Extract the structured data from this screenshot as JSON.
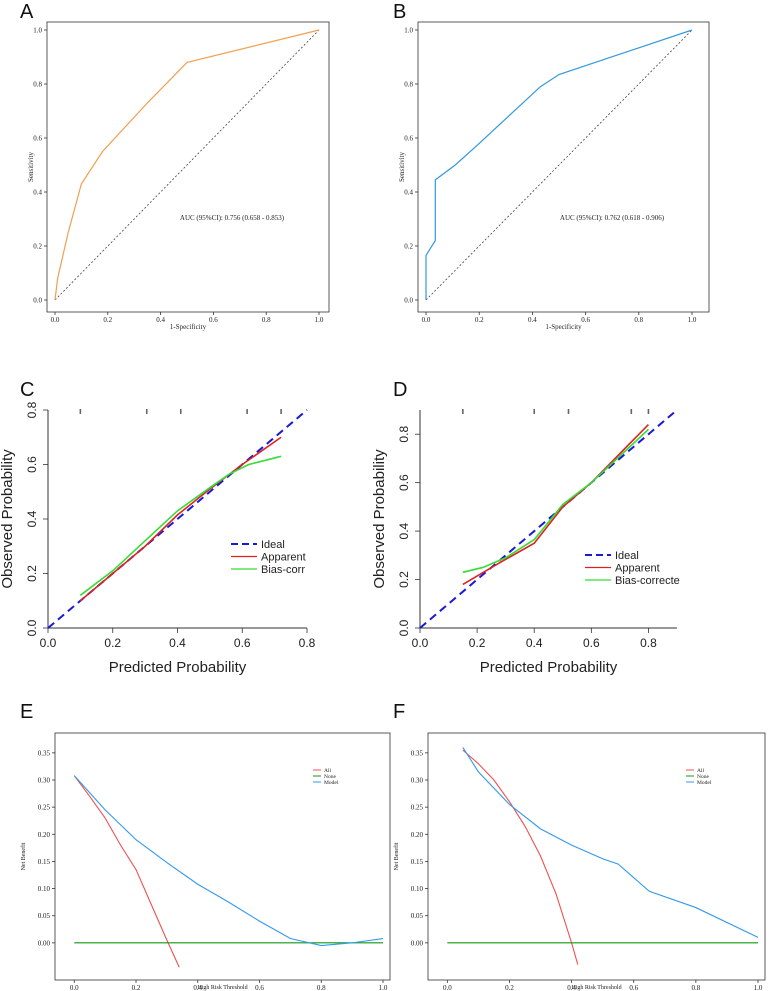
{
  "colors": {
    "roc_a": "#f0a050",
    "roc_b": "#3399dd",
    "ideal": "#1a1ad6",
    "apparent": "#dd2222",
    "bias": "#33dd33",
    "all": "#f05050",
    "none": "#119911",
    "model": "#3399ee"
  },
  "chart_data": [
    {
      "panel": "A",
      "type": "line",
      "xlabel": "1-Specificity",
      "ylabel": "Sensitivity",
      "xlim": [
        0,
        1
      ],
      "ylim": [
        0,
        1
      ],
      "xticks": [
        "0.0",
        "0.2",
        "0.4",
        "0.6",
        "0.8",
        "1.0"
      ],
      "yticks": [
        "0.0",
        "0.2",
        "0.4",
        "0.6",
        "0.8",
        "1.0"
      ],
      "annotation": "AUC (95%CI): 0.756 (0.658 - 0.853)",
      "series": [
        {
          "name": "ROC",
          "x": [
            0,
            0.01,
            0.05,
            0.1,
            0.18,
            0.35,
            0.5,
            1.0
          ],
          "y": [
            0,
            0.08,
            0.25,
            0.43,
            0.55,
            0.73,
            0.88,
            1.0
          ]
        }
      ]
    },
    {
      "panel": "B",
      "type": "line",
      "xlabel": "1-Specificity",
      "ylabel": "Sensitivity",
      "xlim": [
        0,
        1
      ],
      "ylim": [
        0,
        1
      ],
      "xticks": [
        "0.0",
        "0.2",
        "0.4",
        "0.6",
        "0.8",
        "1.0"
      ],
      "yticks": [
        "0.0",
        "0.2",
        "0.4",
        "0.6",
        "0.8",
        "1.0"
      ],
      "annotation": "AUC (95%CI): 0.762 (0.618 - 0.906)",
      "series": [
        {
          "name": "ROC",
          "x": [
            0,
            0,
            0.035,
            0.035,
            0.11,
            0.2,
            0.43,
            0.5,
            1.0
          ],
          "y": [
            0,
            0.165,
            0.22,
            0.445,
            0.5,
            0.58,
            0.79,
            0.835,
            1.0
          ]
        }
      ]
    },
    {
      "panel": "C",
      "type": "line",
      "xlabel": "Predicted Probability",
      "ylabel": "Observed Probability",
      "xlim": [
        0,
        0.8
      ],
      "ylim": [
        0,
        0.8
      ],
      "xticks": [
        "0.0",
        "0.2",
        "0.4",
        "0.6",
        "0.8"
      ],
      "yticks": [
        "0.0",
        "0.2",
        "0.4",
        "0.6",
        "0.8"
      ],
      "legend": [
        "Ideal",
        "Apparent",
        "Bias-corr"
      ],
      "rug": [
        0.1,
        0.305,
        0.41,
        0.615,
        0.72
      ],
      "series": [
        {
          "name": "Ideal",
          "x": [
            0,
            0.8
          ],
          "y": [
            0,
            0.8
          ]
        },
        {
          "name": "Apparent",
          "x": [
            0.1,
            0.2,
            0.3,
            0.4,
            0.5,
            0.6,
            0.72
          ],
          "y": [
            0.1,
            0.2,
            0.3,
            0.415,
            0.51,
            0.6,
            0.7
          ]
        },
        {
          "name": "Bias-corrected",
          "x": [
            0.1,
            0.2,
            0.3,
            0.4,
            0.5,
            0.56,
            0.62,
            0.72
          ],
          "y": [
            0.12,
            0.21,
            0.32,
            0.43,
            0.515,
            0.565,
            0.6,
            0.63
          ]
        }
      ]
    },
    {
      "panel": "D",
      "type": "line",
      "xlabel": "Predicted Probability",
      "ylabel": "Observed Probability",
      "xlim": [
        0,
        0.9
      ],
      "ylim": [
        0,
        0.9
      ],
      "xticks": [
        "0.0",
        "0.2",
        "0.4",
        "0.6",
        "0.8"
      ],
      "yticks": [
        "0.0",
        "0.2",
        "0.4",
        "0.6",
        "0.8"
      ],
      "legend": [
        "Ideal",
        "Apparent",
        "Bias-correcte"
      ],
      "rug": [
        0.15,
        0.4,
        0.52,
        0.74,
        0.8
      ],
      "series": [
        {
          "name": "Ideal",
          "x": [
            0,
            0.9
          ],
          "y": [
            0,
            0.9
          ]
        },
        {
          "name": "Apparent",
          "x": [
            0.15,
            0.28,
            0.4,
            0.5,
            0.6,
            0.8
          ],
          "y": [
            0.18,
            0.27,
            0.35,
            0.5,
            0.6,
            0.84
          ]
        },
        {
          "name": "Bias-corrected",
          "x": [
            0.15,
            0.22,
            0.3,
            0.4,
            0.5,
            0.6,
            0.8
          ],
          "y": [
            0.23,
            0.25,
            0.29,
            0.365,
            0.51,
            0.6,
            0.82
          ]
        }
      ]
    },
    {
      "panel": "E",
      "type": "line",
      "xlabel": "High Risk Threshold",
      "ylabel": "Net Benefit",
      "xlim": [
        -0.03,
        1.0
      ],
      "ylim": [
        -0.05,
        0.37
      ],
      "xticks": [
        "0.0",
        "0.2",
        "0.4",
        "0.6",
        "0.8",
        "1.0"
      ],
      "yticks": [
        "0.00",
        "0.05",
        "0.10",
        "0.15",
        "0.20",
        "0.25",
        "0.30",
        "0.35"
      ],
      "legend": [
        "All",
        "None",
        "Model"
      ],
      "series": [
        {
          "name": "All",
          "x": [
            0,
            0.05,
            0.1,
            0.15,
            0.2,
            0.25,
            0.3,
            0.34
          ],
          "y": [
            0.308,
            0.27,
            0.23,
            0.18,
            0.135,
            0.07,
            0.005,
            -0.045
          ]
        },
        {
          "name": "None",
          "x": [
            0,
            1.0
          ],
          "y": [
            0,
            0
          ]
        },
        {
          "name": "Model",
          "x": [
            0,
            0.1,
            0.2,
            0.3,
            0.4,
            0.5,
            0.6,
            0.7,
            0.8,
            0.9,
            1.0
          ],
          "y": [
            0.308,
            0.245,
            0.19,
            0.148,
            0.108,
            0.075,
            0.04,
            0.008,
            -0.005,
            0.0,
            0.008
          ]
        }
      ]
    },
    {
      "panel": "F",
      "type": "line",
      "xlabel": "High Risk Threshold",
      "ylabel": "Net Benefit",
      "xlim": [
        -0.03,
        1.0
      ],
      "ylim": [
        -0.05,
        0.37
      ],
      "xticks": [
        "0.0",
        "0.2",
        "0.4",
        "0.6",
        "0.8",
        "1.0"
      ],
      "yticks": [
        "0.00",
        "0.05",
        "0.10",
        "0.15",
        "0.20",
        "0.25",
        "0.30",
        "0.35"
      ],
      "legend": [
        "All",
        "None",
        "Model"
      ],
      "series": [
        {
          "name": "All",
          "x": [
            0.05,
            0.1,
            0.15,
            0.2,
            0.25,
            0.3,
            0.35,
            0.4,
            0.42
          ],
          "y": [
            0.355,
            0.33,
            0.3,
            0.26,
            0.215,
            0.16,
            0.09,
            0.0,
            -0.04
          ]
        },
        {
          "name": "None",
          "x": [
            0,
            1.0
          ],
          "y": [
            0,
            0
          ]
        },
        {
          "name": "Model",
          "x": [
            0.05,
            0.1,
            0.2,
            0.3,
            0.4,
            0.5,
            0.55,
            0.6,
            0.65,
            0.8,
            1.0
          ],
          "y": [
            0.36,
            0.315,
            0.255,
            0.21,
            0.18,
            0.155,
            0.145,
            0.12,
            0.095,
            0.065,
            0.01
          ]
        }
      ]
    }
  ],
  "panel_labels": [
    "A",
    "B",
    "C",
    "D",
    "E",
    "F"
  ]
}
